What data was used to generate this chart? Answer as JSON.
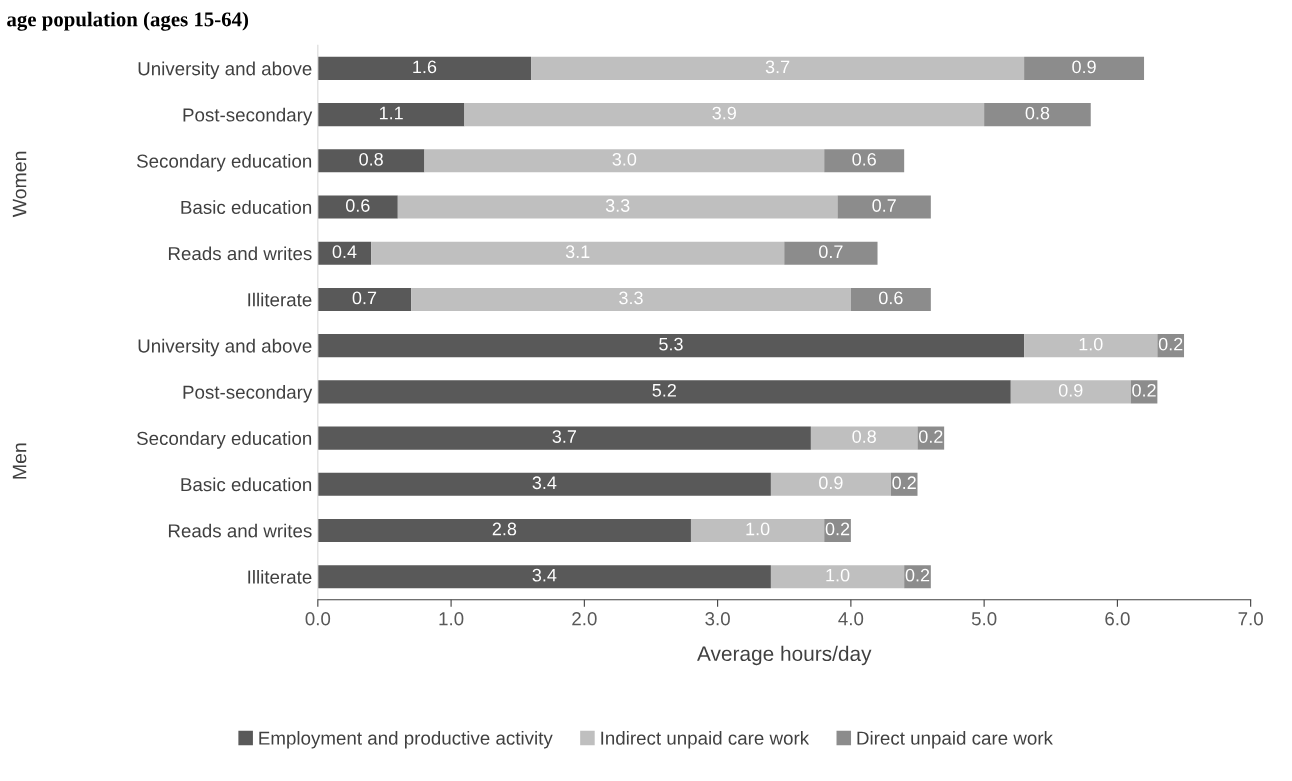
{
  "chart_data": {
    "type": "bar",
    "orientation": "horizontal",
    "stacked": true,
    "title": "age population (ages 15-64)",
    "categories": [
      "University and above",
      "Post-secondary",
      "Secondary education",
      "Basic education",
      "Reads and writes",
      "Illiterate",
      "University and above",
      "Post-secondary",
      "Secondary education",
      "Basic education",
      "Reads and writes",
      "Illiterate"
    ],
    "annotations": [
      "Women",
      "Men"
    ],
    "series": [
      {
        "name": "Employment and productive activity",
        "color": "#595959",
        "values": [
          1.6,
          1.1,
          0.8,
          0.6,
          0.4,
          0.7,
          5.3,
          5.2,
          3.7,
          3.4,
          2.8,
          3.4
        ],
        "value_labels": [
          "1.6",
          "1.1",
          "0.8",
          "0.6",
          "0.4",
          "0.7",
          "5.3",
          "5.2",
          "3.7",
          "3.4",
          "2.8",
          "3.4"
        ]
      },
      {
        "name": "Indirect unpaid care work",
        "color": "#bfbfbf",
        "values": [
          3.7,
          3.9,
          3.0,
          3.3,
          3.1,
          3.3,
          1.0,
          0.9,
          0.8,
          0.9,
          1.0,
          1.0
        ],
        "value_labels": [
          "3.7",
          "3.9",
          "3.0",
          "3.3",
          "3.1",
          "3.3",
          "1.0",
          "0.9",
          "0.8",
          "0.9",
          "1.0",
          "1.0"
        ]
      },
      {
        "name": "Direct unpaid care work",
        "color": "#8c8c8c",
        "values": [
          0.9,
          0.8,
          0.6,
          0.7,
          0.7,
          0.6,
          0.2,
          0.2,
          0.2,
          0.2,
          0.2,
          0.2
        ],
        "value_labels": [
          "0.9",
          "0.8",
          "0.6",
          "0.7",
          "0.7",
          "0.6",
          "0.2",
          "0.2",
          "0.2",
          "0.2",
          "0.2",
          "0.2"
        ]
      }
    ],
    "xlabel": "Average hours/day",
    "xlim": [
      0,
      7
    ],
    "xticks": [
      {
        "value": 0,
        "label": "0.0"
      },
      {
        "value": 1,
        "label": "1.0"
      },
      {
        "value": 2,
        "label": "2.0"
      },
      {
        "value": 3,
        "label": "3.0"
      },
      {
        "value": 4,
        "label": "4.0"
      },
      {
        "value": 5,
        "label": "5.0"
      },
      {
        "value": 6,
        "label": "6.0"
      },
      {
        "value": 7,
        "label": "7.0"
      }
    ],
    "grid": false,
    "legend": "bottom"
  }
}
